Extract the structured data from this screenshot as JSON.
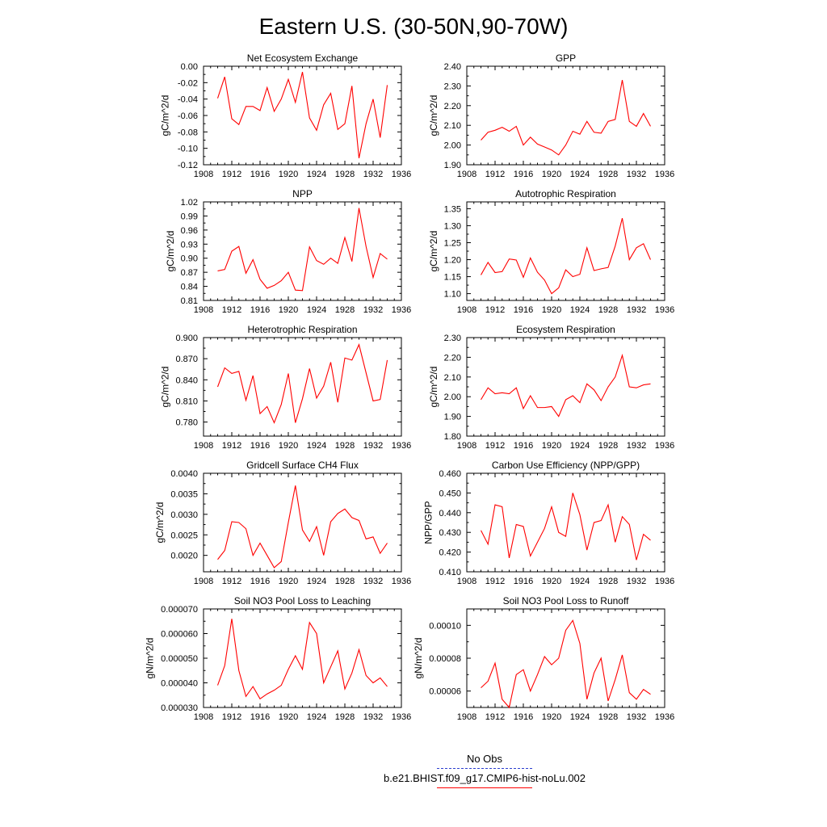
{
  "figure": {
    "title": "Eastern U.S. (30-50N,90-70W)",
    "x_ticks": [
      1908,
      1912,
      1916,
      1920,
      1924,
      1928,
      1932,
      1936
    ],
    "xlim": [
      1908,
      1936
    ],
    "line_color": "#ff0000"
  },
  "legend": {
    "entries": [
      {
        "label": "No Obs",
        "color": "#2b3ecf",
        "style": "dashed"
      },
      {
        "label": "b.e21.BHIST.f09_g17.CMIP6-hist-noLu.002",
        "color": "#ff0000",
        "style": "solid"
      }
    ]
  },
  "chart_data": [
    {
      "type": "line",
      "title": "Net Ecosystem Exchange",
      "ylabel": "gC/m^2/d",
      "ylim": [
        -0.12,
        0.0
      ],
      "yticks": [
        "0.00",
        "-0.02",
        "-0.04",
        "-0.06",
        "-0.08",
        "-0.10",
        "-0.12"
      ],
      "ytick_values": [
        0.0,
        -0.02,
        -0.04,
        -0.06,
        -0.08,
        -0.1,
        -0.12
      ],
      "x": [
        1910,
        1911,
        1912,
        1913,
        1914,
        1915,
        1916,
        1917,
        1918,
        1919,
        1920,
        1921,
        1922,
        1923,
        1924,
        1925,
        1926,
        1927,
        1928,
        1929,
        1930,
        1931,
        1932,
        1933,
        1934
      ],
      "values": [
        -0.039,
        -0.013,
        -0.064,
        -0.071,
        -0.049,
        -0.049,
        -0.054,
        -0.026,
        -0.055,
        -0.04,
        -0.016,
        -0.044,
        -0.007,
        -0.063,
        -0.078,
        -0.047,
        -0.033,
        -0.077,
        -0.07,
        -0.024,
        -0.112,
        -0.07,
        -0.04,
        -0.087,
        -0.023
      ]
    },
    {
      "type": "line",
      "title": "GPP",
      "ylabel": "gC/m^2/d",
      "ylim": [
        1.9,
        2.4
      ],
      "yticks": [
        "2.40",
        "2.30",
        "2.20",
        "2.10",
        "2.00",
        "1.90"
      ],
      "ytick_values": [
        2.4,
        2.3,
        2.2,
        2.1,
        2.0,
        1.9
      ],
      "x": [
        1910,
        1911,
        1912,
        1913,
        1914,
        1915,
        1916,
        1917,
        1918,
        1919,
        1920,
        1921,
        1922,
        1923,
        1924,
        1925,
        1926,
        1927,
        1928,
        1929,
        1930,
        1931,
        1932,
        1933,
        1934
      ],
      "values": [
        2.025,
        2.065,
        2.075,
        2.09,
        2.07,
        2.095,
        2.0,
        2.04,
        2.005,
        1.99,
        1.975,
        1.95,
        2.0,
        2.07,
        2.055,
        2.12,
        2.065,
        2.06,
        2.12,
        2.13,
        2.33,
        2.12,
        2.095,
        2.16,
        2.095
      ]
    },
    {
      "type": "line",
      "title": "NPP",
      "ylabel": "gC/m^2/d",
      "ylim": [
        0.81,
        1.02
      ],
      "yticks": [
        "1.02",
        "0.99",
        "0.96",
        "0.93",
        "0.90",
        "0.87",
        "0.84",
        "0.81"
      ],
      "ytick_values": [
        1.02,
        0.99,
        0.96,
        0.93,
        0.9,
        0.87,
        0.84,
        0.81
      ],
      "x": [
        1910,
        1911,
        1912,
        1913,
        1914,
        1915,
        1916,
        1917,
        1918,
        1919,
        1920,
        1921,
        1922,
        1923,
        1924,
        1925,
        1926,
        1927,
        1928,
        1929,
        1930,
        1931,
        1932,
        1933,
        1934
      ],
      "values": [
        0.873,
        0.876,
        0.915,
        0.925,
        0.868,
        0.897,
        0.855,
        0.836,
        0.842,
        0.852,
        0.87,
        0.832,
        0.831,
        0.924,
        0.895,
        0.887,
        0.9,
        0.889,
        0.944,
        0.893,
        1.007,
        0.925,
        0.859,
        0.91,
        0.898
      ]
    },
    {
      "type": "line",
      "title": "Autotrophic Respiration",
      "ylabel": "gC/m^2/d",
      "ylim": [
        1.08,
        1.37
      ],
      "yticks": [
        "1.35",
        "1.30",
        "1.25",
        "1.20",
        "1.15",
        "1.10"
      ],
      "ytick_values": [
        1.35,
        1.3,
        1.25,
        1.2,
        1.15,
        1.1
      ],
      "x": [
        1910,
        1911,
        1912,
        1913,
        1914,
        1915,
        1916,
        1917,
        1918,
        1919,
        1920,
        1921,
        1922,
        1923,
        1924,
        1925,
        1926,
        1927,
        1928,
        1929,
        1930,
        1931,
        1932,
        1933,
        1934
      ],
      "values": [
        1.155,
        1.192,
        1.162,
        1.165,
        1.202,
        1.199,
        1.148,
        1.205,
        1.163,
        1.14,
        1.1,
        1.117,
        1.17,
        1.15,
        1.157,
        1.235,
        1.168,
        1.173,
        1.177,
        1.24,
        1.322,
        1.2,
        1.235,
        1.247,
        1.2
      ]
    },
    {
      "type": "line",
      "title": "Heterotrophic Respiration",
      "ylabel": "gC/m^2/d",
      "ylim": [
        0.76,
        0.9
      ],
      "yticks": [
        "0.900",
        "0.870",
        "0.840",
        "0.810",
        "0.780"
      ],
      "ytick_values": [
        0.9,
        0.87,
        0.84,
        0.81,
        0.78
      ],
      "x": [
        1910,
        1911,
        1912,
        1913,
        1914,
        1915,
        1916,
        1917,
        1918,
        1919,
        1920,
        1921,
        1922,
        1923,
        1924,
        1925,
        1926,
        1927,
        1928,
        1929,
        1930,
        1931,
        1932,
        1933,
        1934
      ],
      "values": [
        0.83,
        0.857,
        0.849,
        0.852,
        0.811,
        0.846,
        0.792,
        0.802,
        0.779,
        0.805,
        0.849,
        0.779,
        0.813,
        0.856,
        0.814,
        0.831,
        0.865,
        0.808,
        0.871,
        0.868,
        0.89,
        0.85,
        0.81,
        0.812,
        0.868
      ]
    },
    {
      "type": "line",
      "title": "Ecosystem Respiration",
      "ylabel": "gC/m^2/d",
      "ylim": [
        1.8,
        2.3
      ],
      "yticks": [
        "2.30",
        "2.20",
        "2.10",
        "2.00",
        "1.90",
        "1.80"
      ],
      "ytick_values": [
        2.3,
        2.2,
        2.1,
        2.0,
        1.9,
        1.8
      ],
      "x": [
        1910,
        1911,
        1912,
        1913,
        1914,
        1915,
        1916,
        1917,
        1918,
        1919,
        1920,
        1921,
        1922,
        1923,
        1924,
        1925,
        1926,
        1927,
        1928,
        1929,
        1930,
        1931,
        1932,
        1933,
        1934
      ],
      "values": [
        1.985,
        2.045,
        2.015,
        2.02,
        2.015,
        2.045,
        1.94,
        2.005,
        1.945,
        1.945,
        1.95,
        1.9,
        1.985,
        2.005,
        1.97,
        2.065,
        2.035,
        1.98,
        2.05,
        2.1,
        2.21,
        2.05,
        2.045,
        2.06,
        2.065
      ]
    },
    {
      "type": "line",
      "title": "Gridcell Surface CH4 Flux",
      "ylabel": "gC/m^2/d",
      "ylim": [
        0.0016,
        0.004
      ],
      "yticks": [
        "0.0040",
        "0.0035",
        "0.0030",
        "0.0025",
        "0.0020"
      ],
      "ytick_values": [
        0.004,
        0.0035,
        0.003,
        0.0025,
        0.002
      ],
      "x": [
        1910,
        1911,
        1912,
        1913,
        1914,
        1915,
        1916,
        1917,
        1918,
        1919,
        1920,
        1921,
        1922,
        1923,
        1924,
        1925,
        1926,
        1927,
        1928,
        1929,
        1930,
        1931,
        1932,
        1933,
        1934
      ],
      "values": [
        0.0019,
        0.00212,
        0.00282,
        0.0028,
        0.00265,
        0.002,
        0.0023,
        0.002,
        0.0017,
        0.00185,
        0.0028,
        0.0037,
        0.00262,
        0.00234,
        0.0027,
        0.002,
        0.00282,
        0.00302,
        0.00313,
        0.00292,
        0.00285,
        0.0024,
        0.00245,
        0.00205,
        0.0023
      ]
    },
    {
      "type": "line",
      "title": "Carbon Use Efficiency (NPP/GPP)",
      "ylabel": "NPP/GPP",
      "ylim": [
        0.41,
        0.46
      ],
      "yticks": [
        "0.460",
        "0.450",
        "0.440",
        "0.430",
        "0.420",
        "0.410"
      ],
      "ytick_values": [
        0.46,
        0.45,
        0.44,
        0.43,
        0.42,
        0.41
      ],
      "x": [
        1910,
        1911,
        1912,
        1913,
        1914,
        1915,
        1916,
        1917,
        1918,
        1919,
        1920,
        1921,
        1922,
        1923,
        1924,
        1925,
        1926,
        1927,
        1928,
        1929,
        1930,
        1931,
        1932,
        1933,
        1934
      ],
      "values": [
        0.431,
        0.424,
        0.444,
        0.443,
        0.417,
        0.434,
        0.433,
        0.418,
        0.425,
        0.432,
        0.443,
        0.43,
        0.428,
        0.45,
        0.439,
        0.421,
        0.435,
        0.436,
        0.444,
        0.425,
        0.438,
        0.434,
        0.416,
        0.429,
        0.426
      ]
    },
    {
      "type": "line",
      "title": "Soil NO3 Pool Loss to Leaching",
      "ylabel": "gN/m^2/d",
      "ylim": [
        3e-05,
        7e-05
      ],
      "yticks": [
        "0.000070",
        "0.000060",
        "0.000050",
        "0.000040",
        "0.000030"
      ],
      "ytick_values": [
        7e-05,
        6e-05,
        5e-05,
        4e-05,
        3e-05
      ],
      "x": [
        1910,
        1911,
        1912,
        1913,
        1914,
        1915,
        1916,
        1917,
        1918,
        1919,
        1920,
        1921,
        1922,
        1923,
        1924,
        1925,
        1926,
        1927,
        1928,
        1929,
        1930,
        1931,
        1932,
        1933,
        1934
      ],
      "values": [
        3.9e-05,
        4.7e-05,
        6.6e-05,
        4.5e-05,
        3.45e-05,
        3.85e-05,
        3.35e-05,
        3.55e-05,
        3.7e-05,
        3.9e-05,
        4.55e-05,
        5.1e-05,
        4.55e-05,
        6.45e-05,
        6e-05,
        4e-05,
        4.65e-05,
        5.3e-05,
        3.75e-05,
        4.4e-05,
        5.35e-05,
        4.3e-05,
        4e-05,
        4.2e-05,
        3.85e-05
      ]
    },
    {
      "type": "line",
      "title": "Soil NO3 Pool Loss to Runoff",
      "ylabel": "gN/m^2/d",
      "ylim": [
        5e-05,
        0.00011
      ],
      "yticks": [
        "0.00010",
        "0.00008",
        "0.00006"
      ],
      "ytick_values": [
        0.0001,
        8e-05,
        6e-05
      ],
      "x": [
        1910,
        1911,
        1912,
        1913,
        1914,
        1915,
        1916,
        1917,
        1918,
        1919,
        1920,
        1921,
        1922,
        1923,
        1924,
        1925,
        1926,
        1927,
        1928,
        1929,
        1930,
        1931,
        1932,
        1933,
        1934
      ],
      "values": [
        6.2e-05,
        6.6e-05,
        7.7e-05,
        5.5e-05,
        5e-05,
        7e-05,
        7.3e-05,
        6e-05,
        7e-05,
        8.1e-05,
        7.6e-05,
        8e-05,
        9.7e-05,
        0.000103,
        8.9e-05,
        5.5e-05,
        7.1e-05,
        8e-05,
        5.4e-05,
        6.7e-05,
        8.2e-05,
        5.9e-05,
        5.5e-05,
        6.1e-05,
        5.8e-05
      ]
    }
  ]
}
